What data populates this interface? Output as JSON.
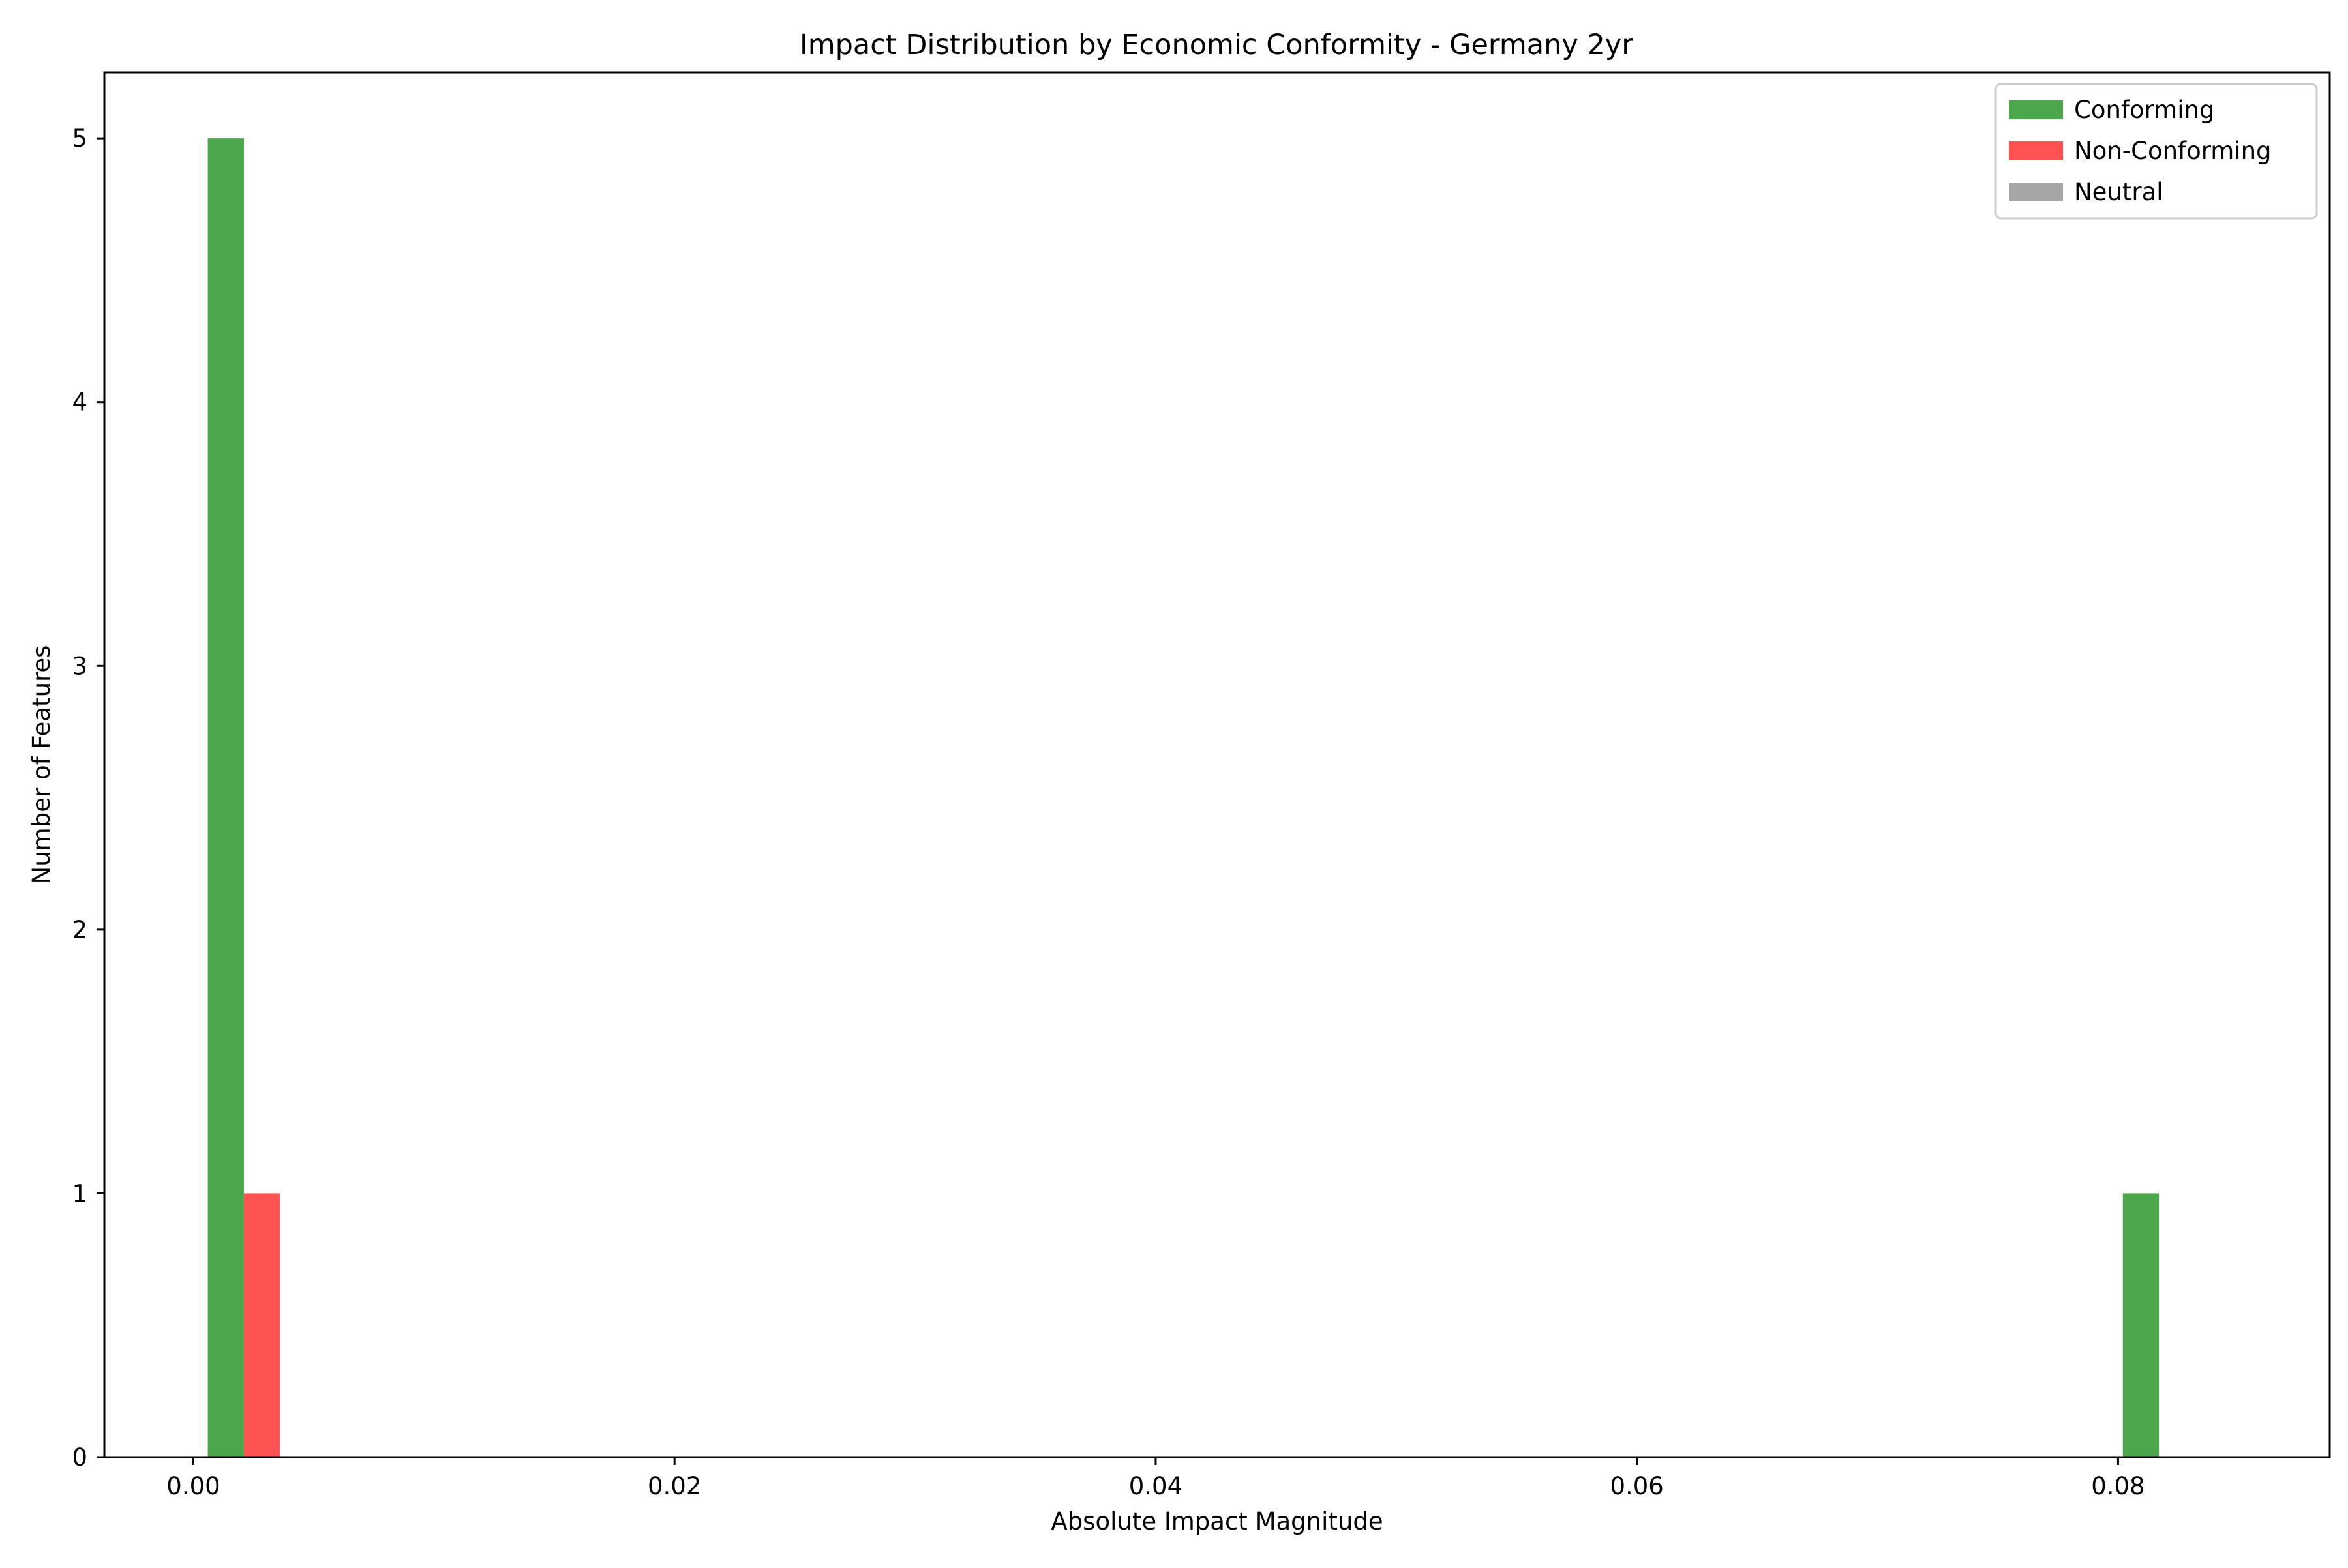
{
  "chart_data": {
    "type": "bar",
    "title": "Impact Distribution by Economic Conformity - Germany 2yr",
    "xlabel": "Absolute Impact Magnitude",
    "ylabel": "Number of Features",
    "xlim": [
      -0.0037,
      0.0888
    ],
    "ylim": [
      0,
      5.25
    ],
    "xticks": [
      0.0,
      0.02,
      0.04,
      0.06,
      0.08
    ],
    "xtick_labels": [
      "0.00",
      "0.02",
      "0.04",
      "0.06",
      "0.08"
    ],
    "yticks": [
      0,
      1,
      2,
      3,
      4,
      5
    ],
    "ytick_labels": [
      "0",
      "1",
      "2",
      "3",
      "4",
      "5"
    ],
    "grid": false,
    "legend_position": "top-right",
    "series": [
      {
        "name": "Conforming",
        "color": "#4ca64c",
        "bars": [
          {
            "x0": 0.0006,
            "x1": 0.0021,
            "value": 5
          },
          {
            "x0": 0.0802,
            "x1": 0.0817,
            "value": 1
          }
        ]
      },
      {
        "name": "Non-Conforming",
        "color": "#ff5252",
        "bars": [
          {
            "x0": 0.0021,
            "x1": 0.0036,
            "value": 1
          }
        ]
      },
      {
        "name": "Neutral",
        "color": "#a6a6a6",
        "bars": []
      }
    ]
  }
}
